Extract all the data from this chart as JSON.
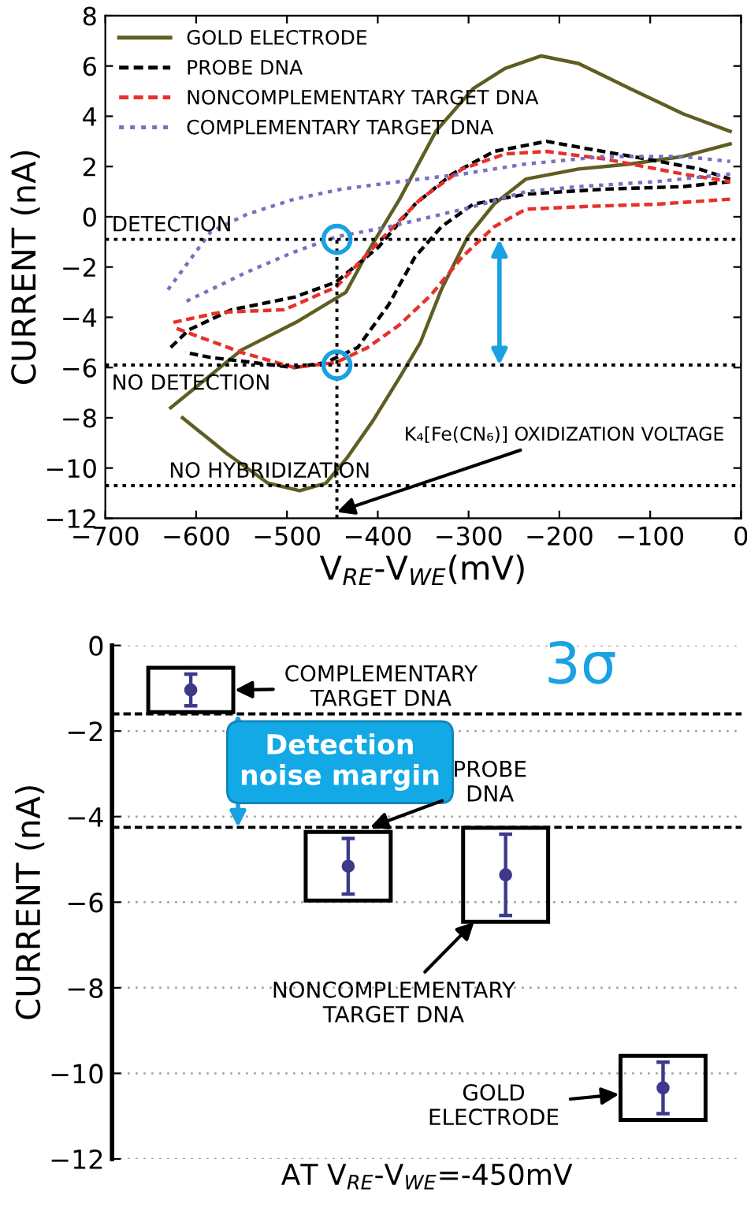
{
  "chart_data": [
    {
      "type": "line",
      "xlabel": "V$_{RE}$-V$_{WE}$(mV)",
      "ylabel": "CURRENT (nA)",
      "xlim": [
        -700,
        0
      ],
      "ylim": [
        -12,
        8
      ],
      "xticks": [
        {
          "value": -700,
          "label": "−700"
        },
        {
          "value": -600,
          "label": "−600"
        },
        {
          "value": -500,
          "label": "−500"
        },
        {
          "value": -400,
          "label": "−400"
        },
        {
          "value": -300,
          "label": "−300"
        },
        {
          "value": -200,
          "label": "−200"
        },
        {
          "value": -100,
          "label": "−100"
        },
        0
      ],
      "yticks": [
        {
          "value": -12,
          "label": "−12"
        },
        {
          "value": -10,
          "label": "−10"
        },
        {
          "value": -8,
          "label": "−8"
        },
        {
          "value": -6,
          "label": "−6"
        },
        {
          "value": -4,
          "label": "−4"
        },
        {
          "value": -2,
          "label": "−2"
        },
        0,
        2,
        4,
        6,
        8
      ],
      "grid": false,
      "legend": "top left",
      "series": [
        {
          "name": "GOLD ELECTRODE",
          "color": "#5f5d22",
          "line_style": "solid",
          "x": [
            -628,
            -550,
            -490,
            -435,
            -411,
            -376,
            -336,
            -295,
            -260,
            -220,
            -179,
            -122,
            -64,
            -12
          ],
          "values": [
            -7.6,
            -5.3,
            -4.2,
            -3.0,
            -1.4,
            0.7,
            3.4,
            5.1,
            5.9,
            6.4,
            6.1,
            5.1,
            4.1,
            3.4
          ]
        },
        {
          "color": "#5f5d22",
          "line_style": "solid",
          "x": [
            -12,
            -64,
            -122,
            -179,
            -237,
            -272,
            -301,
            -330,
            -353,
            -376,
            -405,
            -434,
            -457,
            -486,
            -521,
            -567,
            -615
          ],
          "values": [
            2.9,
            2.4,
            2.1,
            1.9,
            1.5,
            0.5,
            -0.8,
            -2.9,
            -5.0,
            -6.4,
            -8.1,
            -9.6,
            -10.6,
            -10.9,
            -10.6,
            -9.4,
            -8.0
          ]
        },
        {
          "name": "PROBE DNA",
          "color": "#000000",
          "line_style": "dashed",
          "x": [
            -628,
            -608,
            -561,
            -492,
            -446,
            -399,
            -359,
            -318,
            -272,
            -214,
            -168,
            -104,
            -46,
            -12
          ],
          "values": [
            -5.2,
            -4.5,
            -3.7,
            -3.2,
            -2.6,
            -1.2,
            0.5,
            1.7,
            2.6,
            3.0,
            2.7,
            2.3,
            1.9,
            1.5
          ]
        },
        {
          "color": "#000000",
          "line_style": "dashed",
          "x": [
            -12,
            -64,
            -150,
            -237,
            -295,
            -330,
            -359,
            -388,
            -422,
            -457,
            -492,
            -538,
            -584,
            -612
          ],
          "values": [
            1.4,
            1.2,
            1.1,
            0.9,
            0.5,
            -0.4,
            -1.6,
            -3.5,
            -5.2,
            -5.8,
            -6.0,
            -5.8,
            -5.6,
            -5.4
          ]
        },
        {
          "name": "NONCOMPLEMENTARY TARGET DNA",
          "color": "#e8302a",
          "line_style": "dashed",
          "x": [
            -625,
            -573,
            -503,
            -446,
            -399,
            -353,
            -307,
            -260,
            -214,
            -150,
            -64,
            -12
          ],
          "values": [
            -4.2,
            -3.8,
            -3.7,
            -2.8,
            -1.0,
            0.7,
            1.9,
            2.5,
            2.6,
            2.3,
            1.7,
            1.4
          ]
        },
        {
          "color": "#e8302a",
          "line_style": "dashed",
          "x": [
            -12,
            -93,
            -179,
            -237,
            -272,
            -307,
            -341,
            -376,
            -411,
            -446,
            -492,
            -550,
            -625
          ],
          "values": [
            0.7,
            0.5,
            0.4,
            0.3,
            -0.4,
            -1.6,
            -3.1,
            -4.3,
            -5.2,
            -5.8,
            -6.0,
            -5.4,
            -4.4
          ]
        },
        {
          "name": "COMPLEMENTARY TARGET DNA",
          "color": "#7b6fc0",
          "line_style": "dotted",
          "x": [
            -631,
            -584,
            -544,
            -492,
            -440,
            -376,
            -307,
            -237,
            -150,
            -64,
            -12
          ],
          "values": [
            -2.9,
            -0.6,
            0.1,
            0.7,
            1.1,
            1.4,
            1.7,
            2.1,
            2.4,
            2.4,
            2.2
          ]
        },
        {
          "color": "#7b6fc0",
          "line_style": "dotted",
          "x": [
            -12,
            -93,
            -179,
            -237,
            -295,
            -341,
            -388,
            -446,
            -492,
            -544,
            -584,
            -613
          ],
          "values": [
            1.7,
            1.4,
            1.2,
            1.0,
            0.4,
            0.0,
            -0.4,
            -0.8,
            -1.4,
            -2.2,
            -2.9,
            -3.4
          ]
        },
        {
          "type": "scatter",
          "marker": "circle",
          "color": "#1ba1e2",
          "x": [
            -445,
            -445
          ],
          "values": [
            -0.9,
            -5.9
          ]
        }
      ],
      "ref_lines": [
        {
          "axis": "y",
          "value": -0.9,
          "label": "DETECTION",
          "color": "#000000",
          "line_style": "dotted"
        },
        {
          "axis": "y",
          "value": -5.9,
          "label": "NO DETECTION",
          "color": "#000000",
          "line_style": "dotted"
        },
        {
          "axis": "y",
          "value": -10.7,
          "label": "NO HYBRIDIZATION",
          "color": "#000000",
          "line_style": "dotted"
        },
        {
          "axis": "x",
          "value": -445,
          "label": "K₄[Fe(CN₆)] OXIDIZATION VOLTAGE",
          "color": "#000000",
          "line_style": "dotted"
        }
      ]
    },
    {
      "type": "scatter",
      "categories": [
        null,
        null,
        null,
        null
      ],
      "xlabel": "AT V$_{RE}$-V$_{WE}$=-450mV",
      "ylabel": "CURRENT (nA)",
      "ylim": [
        -12,
        0
      ],
      "yticks": [
        {
          "value": -12,
          "label": "−12"
        },
        {
          "value": -10,
          "label": "−10"
        },
        {
          "value": -8,
          "label": "−8"
        },
        {
          "value": -6,
          "label": "−6"
        },
        {
          "value": -4,
          "label": "−4"
        },
        {
          "value": -2,
          "label": "−2"
        },
        0
      ],
      "grid": "y",
      "tick_labels": "y",
      "marker": "circle",
      "series": [
        {
          "color": "#3d3a8c",
          "values": [
            -1.04,
            -5.16,
            -5.36,
            -10.34
          ],
          "errors": [
            0.37,
            0.65,
            0.95,
            0.6
          ]
        }
      ],
      "ref_lines": [
        {
          "axis": "y",
          "value": -1.6,
          "color": "#000000",
          "line_style": "dashed"
        },
        {
          "axis": "y",
          "value": -4.25,
          "color": "#000000",
          "line_style": "dashed"
        }
      ],
      "annotations": [
        "COMPLEMENTARY\nTARGET DNA",
        "Detection\nnoise margin",
        "PROBE\nDNA",
        "NONCOMPLEMENTARY\nTARGET DNA",
        "GOLD\nELECTRODE",
        "3σ"
      ]
    }
  ]
}
